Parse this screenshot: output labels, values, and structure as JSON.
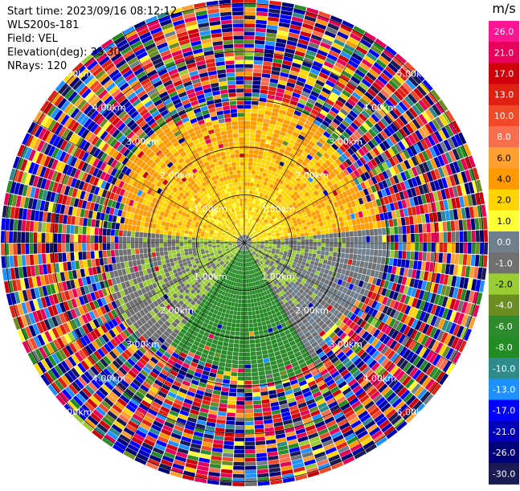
{
  "header": {
    "start_time": "Start time: 2023/09/16 08:12:12",
    "instrument": "WLS200s-181",
    "field": "Field: VEL",
    "elevation": "Elevation(deg): 35.30",
    "nrays": "NRays: 120"
  },
  "colorbar": {
    "unit": "m/s",
    "ticks": [
      "26.0",
      "21.0",
      "17.0",
      "13.0",
      "10.0",
      "8.0",
      "6.0",
      "4.0",
      "2.0",
      "1.0",
      "0.0",
      "-1.0",
      "-2.0",
      "-4.0",
      "-6.0",
      "-8.0",
      "-10.0",
      "-13.0",
      "-17.0",
      "-21.0",
      "-26.0",
      "-30.0"
    ],
    "colors": [
      "#ff1493",
      "#e8005a",
      "#d0000a",
      "#e02010",
      "#f04a28",
      "#fa6e50",
      "#ffa030",
      "#ff9a00",
      "#ffd400",
      "#ffff33",
      "#6f7f8c",
      "#707070",
      "#9acd32",
      "#6b8e23",
      "#2e8b2e",
      "#228b22",
      "#2e8b8b",
      "#1e90ff",
      "#0000ff",
      "#0000bb",
      "#00007a",
      "#1a1a55"
    ]
  },
  "chart_data": {
    "type": "heatmap",
    "title": "",
    "projection": "polar PPI",
    "field": "VEL",
    "units": "m/s",
    "nrays": 120,
    "range_rings_km": [
      1.0,
      2.0,
      3.0,
      4.0,
      5.0
    ],
    "range_ring_labels": [
      "1.00km",
      "2.00km",
      "3.00km",
      "4.00km",
      "5.00km"
    ],
    "max_range_km": 5.1,
    "vmin": -30.0,
    "vmax": 26.0,
    "color_levels": [
      -30,
      -26,
      -21,
      -17,
      -13,
      -10,
      -8,
      -6,
      -4,
      -2,
      -1,
      0,
      1,
      2,
      4,
      6,
      8,
      10,
      13,
      17,
      21,
      26
    ],
    "pattern": {
      "coherent_range_km": [
        0.0,
        2.8
      ],
      "coherent_sectors": [
        {
          "azimuth_deg": [
            275,
            85
          ],
          "velocity_ms": [
            1.0,
            6.0
          ]
        },
        {
          "azimuth_deg": [
            85,
            150
          ],
          "velocity_ms": [
            -2.0,
            1.0
          ]
        },
        {
          "azimuth_deg": [
            150,
            215
          ],
          "velocity_ms": [
            -8.0,
            -4.0
          ]
        },
        {
          "azimuth_deg": [
            215,
            275
          ],
          "velocity_ms": [
            -2.0,
            0.0
          ]
        }
      ],
      "outer_noise_range_km": [
        2.8,
        5.1
      ],
      "outer_noise_velocity_ms": [
        -30.0,
        26.0
      ]
    }
  }
}
